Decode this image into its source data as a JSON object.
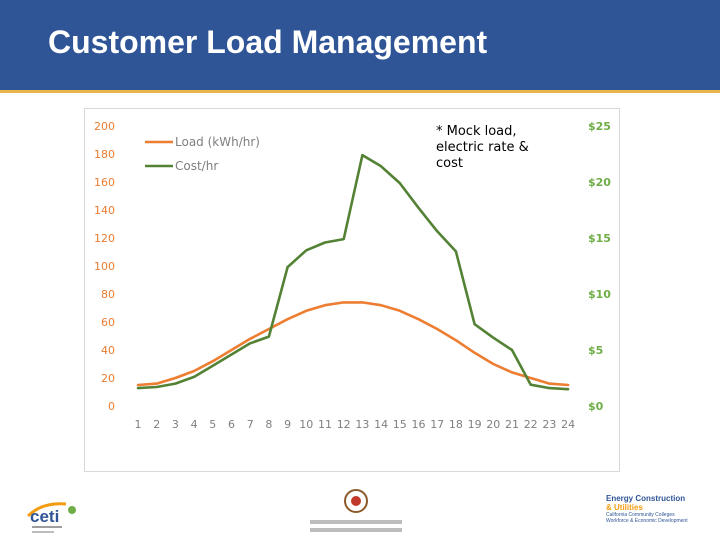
{
  "slide": {
    "title": "Customer Load Management",
    "note_lines": [
      "* Mock load,",
      "electric rate &",
      "cost"
    ]
  },
  "logos": {
    "left": "ceti",
    "right_line1": "Energy Construction",
    "right_line2": "& Utilities",
    "right_line3": "California Community Colleges",
    "right_line4": "Workforce & Economic Development"
  },
  "colors": {
    "header": "#2f5597",
    "header_rule": "#e8b64c",
    "load": "#ed7d31",
    "cost": "#548235",
    "right_axis": "#70ad47"
  },
  "chart_data": {
    "type": "line",
    "x": [
      1,
      2,
      3,
      4,
      5,
      6,
      7,
      8,
      9,
      10,
      11,
      12,
      13,
      14,
      15,
      16,
      17,
      18,
      19,
      20,
      21,
      22,
      23,
      24
    ],
    "series": [
      {
        "name": "Load (kWh/hr)",
        "axis": "left",
        "values": [
          15,
          16,
          20,
          25,
          32,
          40,
          48,
          55,
          62,
          68,
          72,
          74,
          74,
          72,
          68,
          62,
          55,
          47,
          38,
          30,
          24,
          20,
          16,
          15
        ]
      },
      {
        "name": "Cost/hr",
        "axis": "right",
        "values": [
          1.6,
          1.7,
          2.0,
          2.6,
          3.6,
          4.6,
          5.6,
          6.2,
          12.4,
          13.9,
          14.6,
          14.9,
          22.4,
          21.4,
          19.9,
          17.7,
          15.6,
          13.8,
          7.3,
          6.1,
          5.0,
          1.9,
          1.6,
          1.5
        ]
      }
    ],
    "y_left": {
      "min": 0,
      "max": 200,
      "ticks": [
        "0",
        "20",
        "40",
        "60",
        "80",
        "100",
        "120",
        "140",
        "160",
        "180",
        "200"
      ]
    },
    "y_right": {
      "min": 0,
      "max": 25,
      "ticks": [
        "$0",
        "$5",
        "$10",
        "$15",
        "$20",
        "$25"
      ]
    },
    "x_ticks": [
      "1",
      "2",
      "3",
      "4",
      "5",
      "6",
      "7",
      "8",
      "9",
      "10",
      "11",
      "12",
      "13",
      "14",
      "15",
      "16",
      "17",
      "18",
      "19",
      "20",
      "21",
      "22",
      "23",
      "24"
    ],
    "grid": false,
    "legend_position": "top-left"
  }
}
